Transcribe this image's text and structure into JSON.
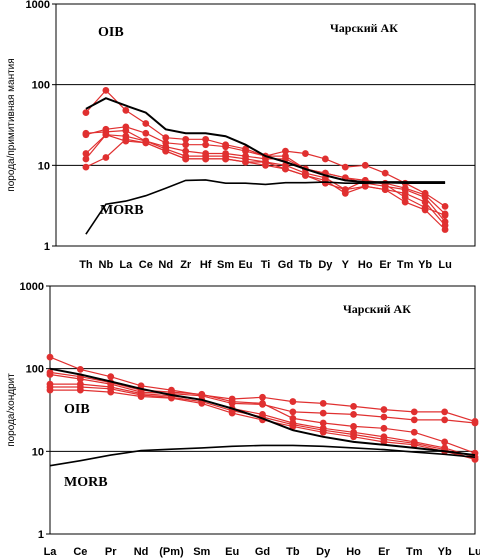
{
  "chart_data": [
    {
      "type": "line",
      "title": "Чарский АК",
      "ylabel": "порода/примитивная мантия",
      "yscale": "log",
      "ylim": [
        1,
        1000
      ],
      "yticks": [
        "1",
        "10",
        "100",
        "1000"
      ],
      "grid": true,
      "categories": [
        "Th",
        "Nb",
        "La",
        "Ce",
        "Nd",
        "Zr",
        "Hf",
        "Sm",
        "Eu",
        "Ti",
        "Gd",
        "Tb",
        "Dy",
        "Y",
        "Ho",
        "Er",
        "Tm",
        "Yb",
        "Lu"
      ],
      "reference_lines": [
        {
          "name": "OIB",
          "color": "#000000",
          "values": [
            50,
            68,
            55,
            45,
            28,
            25,
            25,
            23,
            18,
            13,
            11,
            9,
            7.5,
            6.5,
            6.2,
            6.2,
            6.2,
            6.2,
            6.2
          ]
        },
        {
          "name": "MORB",
          "color": "#000000",
          "values": [
            1.4,
            3.3,
            3.6,
            4.2,
            5.2,
            6.5,
            6.6,
            6,
            6,
            5.8,
            6.1,
            6.1,
            6.2,
            6,
            6,
            6.1,
            6,
            6,
            6
          ]
        }
      ],
      "series": [
        {
          "color": "#e03030",
          "values": [
            45,
            85,
            48,
            33,
            22,
            21,
            21,
            18,
            16,
            13,
            15,
            14,
            12,
            9.5,
            10,
            8,
            6,
            4.5,
            3.1
          ]
        },
        {
          "color": "#e03030",
          "values": [
            24,
            28,
            30,
            25,
            19,
            18,
            18,
            17,
            15,
            13,
            13,
            9,
            8,
            7,
            6.5,
            6,
            5.2,
            4.3,
            2.5
          ]
        },
        {
          "color": "#e03030",
          "values": [
            25,
            26,
            27,
            20,
            17,
            15,
            14,
            14,
            13,
            12,
            12,
            9,
            8,
            7,
            6,
            5.5,
            5,
            4,
            2
          ]
        },
        {
          "color": "#e03030",
          "values": [
            14,
            24,
            23,
            20,
            16,
            13,
            13,
            13,
            12,
            11,
            10,
            8,
            7,
            5,
            6.5,
            5.8,
            4,
            3,
            2.4
          ]
        },
        {
          "color": "#e03030",
          "values": [
            9.5,
            12.5,
            21,
            19,
            15,
            12,
            12,
            12,
            11,
            11,
            9,
            7.5,
            6.5,
            4.5,
            5.5,
            5,
            3.5,
            2.8,
            1.6
          ]
        },
        {
          "color": "#e03030",
          "values": [
            12,
            24,
            20,
            19,
            15,
            12,
            12,
            12,
            11,
            10,
            9,
            7.5,
            6,
            5,
            5.5,
            5,
            4.5,
            3.5,
            1.8
          ]
        }
      ]
    },
    {
      "type": "line",
      "title": "Чарский АК",
      "ylabel": "порода/хондрит",
      "yscale": "log",
      "ylim": [
        1,
        1000
      ],
      "yticks": [
        "1",
        "10",
        "100",
        "1000"
      ],
      "grid": true,
      "categories": [
        "La",
        "Ce",
        "Pr",
        "Nd",
        "(Pm)",
        "Sm",
        "Eu",
        "Gd",
        "Tb",
        "Dy",
        "Ho",
        "Er",
        "Tm",
        "Yb",
        "Lu"
      ],
      "reference_lines": [
        {
          "name": "OIB",
          "color": "#000000",
          "values": [
            100,
            85,
            70,
            57,
            48,
            42,
            33,
            25,
            18,
            15,
            13,
            12,
            11,
            10,
            9
          ]
        },
        {
          "name": "MORB",
          "color": "#000000",
          "values": [
            6.7,
            7.7,
            9,
            10.2,
            10.6,
            11,
            11.5,
            11.8,
            11.8,
            11.5,
            11,
            10.5,
            9.8,
            9.2,
            8.5
          ]
        }
      ],
      "series": [
        {
          "color": "#e03030",
          "values": [
            138,
            98,
            80,
            62,
            55,
            48,
            43,
            45,
            40,
            38,
            35,
            32,
            30,
            30,
            23
          ]
        },
        {
          "color": "#e03030",
          "values": [
            90,
            80,
            68,
            55,
            52,
            49,
            40,
            38,
            25,
            22,
            20,
            19,
            17,
            13,
            9.5
          ]
        },
        {
          "color": "#e03030",
          "values": [
            85,
            75,
            65,
            52,
            50,
            47,
            38,
            37,
            30,
            29,
            28,
            26,
            24,
            24,
            22
          ]
        },
        {
          "color": "#e03030",
          "values": [
            65,
            65,
            60,
            50,
            47,
            42,
            33,
            28,
            22,
            19,
            17,
            15,
            13,
            11,
            8.5
          ]
        },
        {
          "color": "#e03030",
          "values": [
            60,
            60,
            57,
            48,
            45,
            40,
            31,
            26,
            21,
            18,
            16,
            14,
            12.5,
            10.5,
            8
          ]
        },
        {
          "color": "#e03030",
          "values": [
            55,
            55,
            52,
            46,
            44,
            38,
            29,
            24,
            20,
            17,
            15,
            13,
            12,
            10,
            8
          ]
        }
      ]
    }
  ]
}
